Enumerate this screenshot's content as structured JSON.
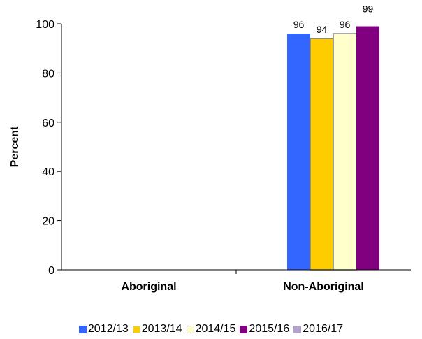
{
  "chart_data": {
    "type": "bar",
    "title": "",
    "xlabel": "",
    "ylabel": "Percent",
    "ylim": [
      0,
      100
    ],
    "yticks": [
      0,
      20,
      40,
      60,
      80,
      100
    ],
    "categories": [
      "Aboriginal",
      "Non-Aboriginal"
    ],
    "grid": false,
    "legend_position": "bottom",
    "series": [
      {
        "name": "2012/13",
        "color": "#3366FF",
        "stroke": "#3366FF",
        "values": [
          null,
          96
        ]
      },
      {
        "name": "2013/14",
        "color": "#FFCC00",
        "stroke": "#808080",
        "values": [
          null,
          94
        ]
      },
      {
        "name": "2014/15",
        "color": "#FFFFCC",
        "stroke": "#808080",
        "values": [
          null,
          96
        ]
      },
      {
        "name": "2015/16",
        "color": "#800080",
        "stroke": "#800080",
        "values": [
          null,
          99
        ]
      },
      {
        "name": "2016/17",
        "color": "#B3A2C7",
        "stroke": "#B3A2C7",
        "values": [
          null,
          null
        ]
      }
    ]
  }
}
